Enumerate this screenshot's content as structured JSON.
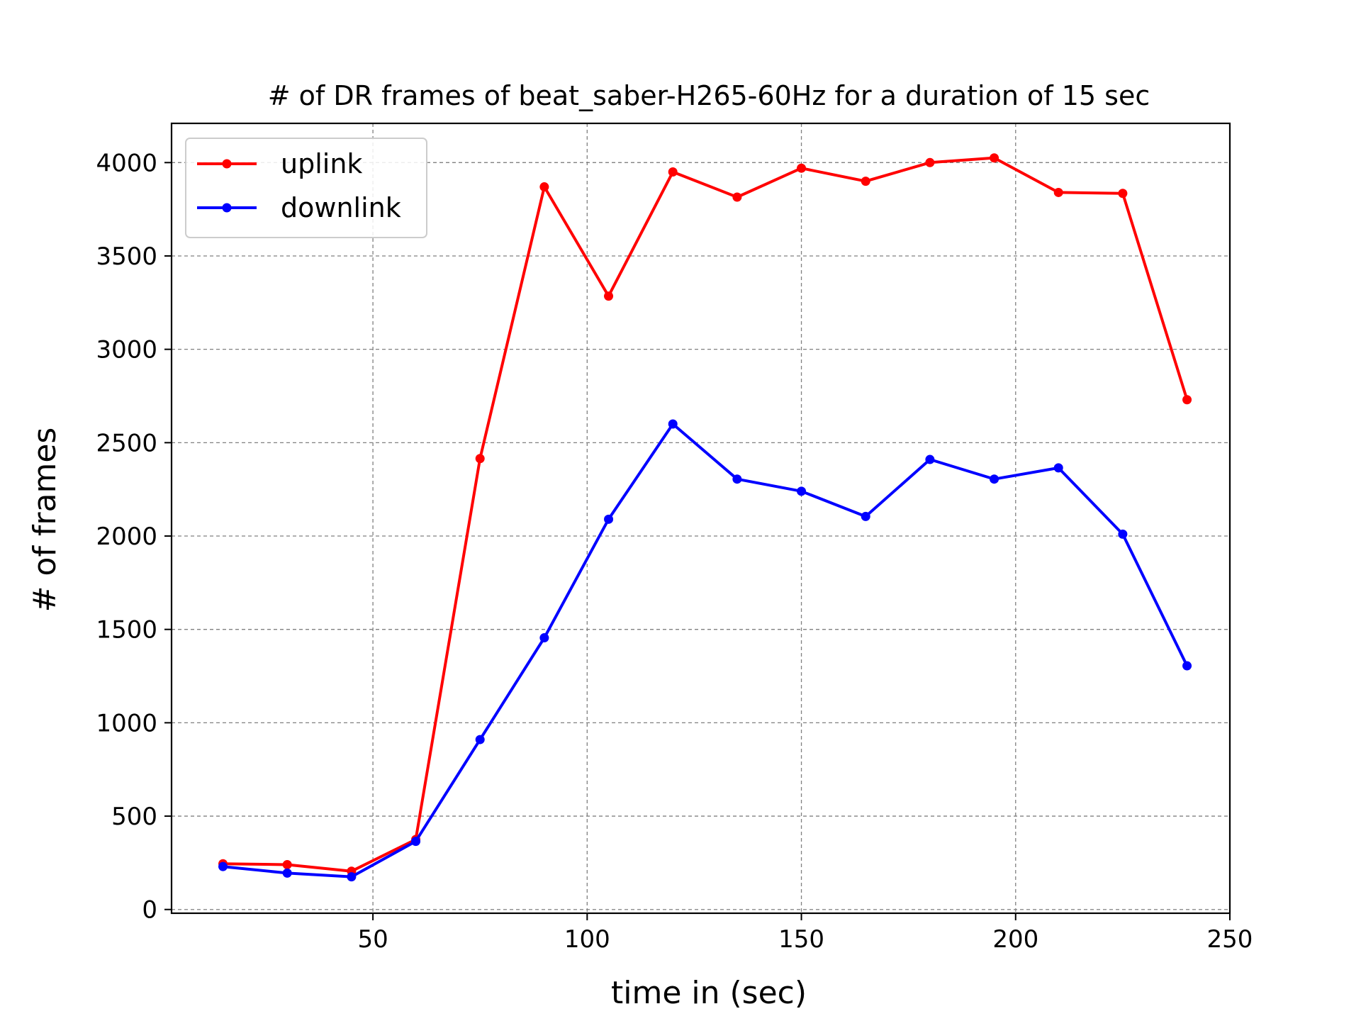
{
  "chart_data": {
    "type": "line",
    "title": "# of DR frames of beat_saber-H265-60Hz for a duration of 15 sec",
    "xlabel": "time in (sec)",
    "ylabel": "# of frames",
    "xlim": [
      3,
      250
    ],
    "ylim": [
      -20,
      4210
    ],
    "xticks": [
      50,
      100,
      150,
      200,
      250
    ],
    "yticks": [
      0,
      500,
      1000,
      1500,
      2000,
      2500,
      3000,
      3500,
      4000
    ],
    "grid": true,
    "legend_position": "upper-left",
    "x": [
      15,
      30,
      45,
      60,
      75,
      90,
      105,
      120,
      135,
      150,
      165,
      180,
      195,
      210,
      225,
      240
    ],
    "series": [
      {
        "name": "uplink",
        "color": "#ff0000",
        "values": [
          245,
          240,
          205,
          375,
          2415,
          3870,
          3285,
          3950,
          3815,
          3970,
          3900,
          4000,
          4025,
          3840,
          3835,
          2730
        ]
      },
      {
        "name": "downlink",
        "color": "#0000ff",
        "values": [
          230,
          195,
          175,
          365,
          910,
          1455,
          2090,
          2600,
          2305,
          2240,
          2105,
          2410,
          2305,
          2365,
          2010,
          1305
        ]
      }
    ]
  }
}
